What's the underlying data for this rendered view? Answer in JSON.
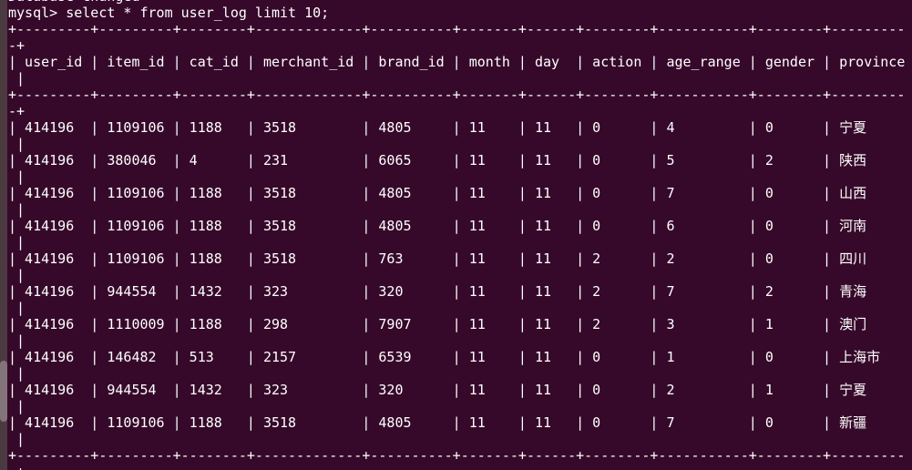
{
  "terminal": {
    "previous_output": "Database changed",
    "prompt": "mysql> ",
    "command": "select * from user_log limit 10;",
    "columns_per_line": 109,
    "colors": {
      "background": "#36092a",
      "foreground": "#ffffff",
      "scrollbar_track": "#4c3a41",
      "scrollbar_thumb": "#83737a"
    }
  },
  "result_table": {
    "columns": [
      {
        "name": "user_id",
        "width": 9
      },
      {
        "name": "item_id",
        "width": 9
      },
      {
        "name": "cat_id",
        "width": 8
      },
      {
        "name": "merchant_id",
        "width": 13
      },
      {
        "name": "brand_id",
        "width": 10
      },
      {
        "name": "month",
        "width": 7
      },
      {
        "name": "day",
        "width": 6
      },
      {
        "name": "action",
        "width": 8
      },
      {
        "name": "age_range",
        "width": 11
      },
      {
        "name": "gender",
        "width": 8
      },
      {
        "name": "province",
        "width": 10
      }
    ],
    "rows": [
      [
        "414196",
        "1109106",
        "1188",
        "3518",
        "4805",
        "11",
        "11",
        "0",
        "4",
        "0",
        "宁夏"
      ],
      [
        "414196",
        "380046",
        "4",
        "231",
        "6065",
        "11",
        "11",
        "0",
        "5",
        "2",
        "陕西"
      ],
      [
        "414196",
        "1109106",
        "1188",
        "3518",
        "4805",
        "11",
        "11",
        "0",
        "7",
        "0",
        "山西"
      ],
      [
        "414196",
        "1109106",
        "1188",
        "3518",
        "4805",
        "11",
        "11",
        "0",
        "6",
        "0",
        "河南"
      ],
      [
        "414196",
        "1109106",
        "1188",
        "3518",
        "763",
        "11",
        "11",
        "2",
        "2",
        "0",
        "四川"
      ],
      [
        "414196",
        "944554",
        "1432",
        "323",
        "320",
        "11",
        "11",
        "2",
        "7",
        "2",
        "青海"
      ],
      [
        "414196",
        "1110009",
        "1188",
        "298",
        "7907",
        "11",
        "11",
        "2",
        "3",
        "1",
        "澳门"
      ],
      [
        "414196",
        "146482",
        "513",
        "2157",
        "6539",
        "11",
        "11",
        "0",
        "1",
        "0",
        "上海市"
      ],
      [
        "414196",
        "944554",
        "1432",
        "323",
        "320",
        "11",
        "11",
        "0",
        "2",
        "1",
        "宁夏"
      ],
      [
        "414196",
        "1109106",
        "1188",
        "3518",
        "4805",
        "11",
        "11",
        "0",
        "7",
        "0",
        "新疆"
      ]
    ],
    "wrap": {
      "border_continuation": "-+",
      "row_continuation": " |"
    }
  }
}
